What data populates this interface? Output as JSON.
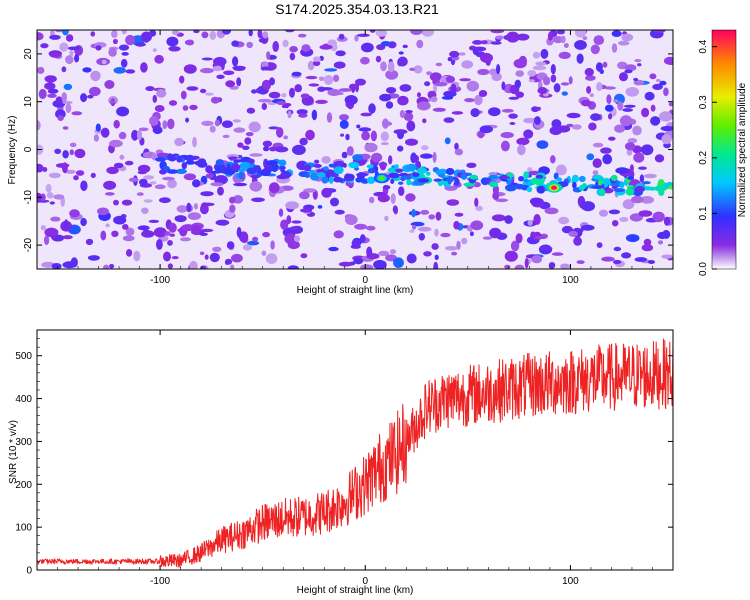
{
  "title": "S174.2025.354.03.13.R21",
  "chart_data": [
    {
      "type": "heatmap",
      "xlabel": "Height of straight line (km)",
      "ylabel": "Frequency (Hz)",
      "xlim": [
        -160,
        150
      ],
      "ylim": [
        -25,
        25
      ],
      "xticks": [
        -100,
        0,
        100
      ],
      "yticks": [
        -20,
        -10,
        0,
        10,
        20
      ],
      "colorbar": {
        "label": "Normalized spectral amplitude",
        "range": [
          0,
          0.43
        ],
        "ticks": [
          "0.0",
          "0.1",
          "0.2",
          "0.3",
          "0.4"
        ],
        "colormap": "rainbow (white-purple-blue-cyan-green-yellow-red)"
      },
      "features": [
        {
          "description": "signal band",
          "x_range": [
            -100,
            150
          ],
          "frequency_hz_start": -3,
          "frequency_hz_end": -8
        },
        {
          "description": "peak",
          "x": 92,
          "frequency_hz": -8,
          "amplitude": 0.42
        },
        {
          "description": "secondary peak",
          "x": 8,
          "frequency_hz": -6,
          "amplitude": 0.25
        }
      ]
    },
    {
      "type": "line",
      "xlabel": "Height of straight line (km)",
      "ylabel": "SNR (10 * v/v)",
      "xlim": [
        -160,
        150
      ],
      "ylim": [
        0,
        560
      ],
      "xticks": [
        -100,
        0,
        100
      ],
      "yticks": [
        0,
        100,
        200,
        300,
        400,
        500
      ],
      "line_color": "#ee2222",
      "series": [
        {
          "x": [
            -160,
            -140,
            -120,
            -100,
            -90,
            -80,
            -70,
            -60,
            -50,
            -40,
            -30,
            -20,
            -10,
            0,
            5,
            10,
            15,
            20,
            25,
            30,
            40,
            60,
            80,
            100,
            120,
            140,
            150
          ],
          "y": [
            20,
            20,
            20,
            20,
            22,
            40,
            70,
            85,
            110,
            120,
            125,
            135,
            160,
            200,
            230,
            250,
            270,
            300,
            340,
            380,
            400,
            415,
            430,
            440,
            450,
            455,
            460
          ]
        }
      ]
    }
  ]
}
